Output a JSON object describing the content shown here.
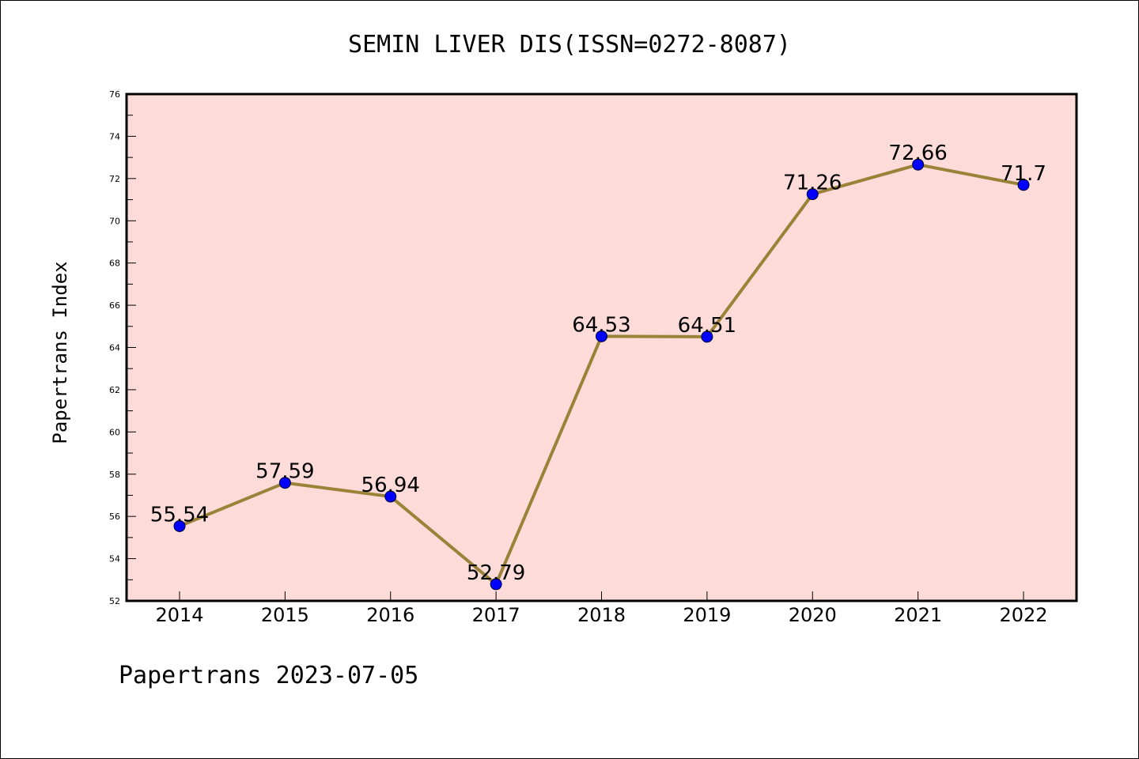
{
  "colors": {
    "plot_background": "#fddbd9",
    "line": "#9a8238",
    "marker": "#0000ff",
    "axis": "#000000"
  },
  "chart_data": {
    "type": "line",
    "title": "SEMIN LIVER DIS(ISSN=0272-8087)",
    "ylabel": "Papertrans Index",
    "xlabel": "",
    "footer": "Papertrans 2023-07-05",
    "categories": [
      "2014",
      "2015",
      "2016",
      "2017",
      "2018",
      "2019",
      "2020",
      "2021",
      "2022"
    ],
    "values": [
      55.54,
      57.59,
      56.94,
      52.79,
      64.53,
      64.51,
      71.26,
      72.66,
      71.7
    ],
    "data_labels": [
      "55.54",
      "57.59",
      "56.94",
      "52.79",
      "64.53",
      "64.51",
      "71.26",
      "72.66",
      "71.7"
    ],
    "ylim": [
      52,
      76
    ],
    "yticks": [
      "52",
      "54",
      "56",
      "58",
      "60",
      "62",
      "64",
      "66",
      "68",
      "70",
      "72",
      "74",
      "76"
    ],
    "grid": false,
    "legend": "none"
  }
}
